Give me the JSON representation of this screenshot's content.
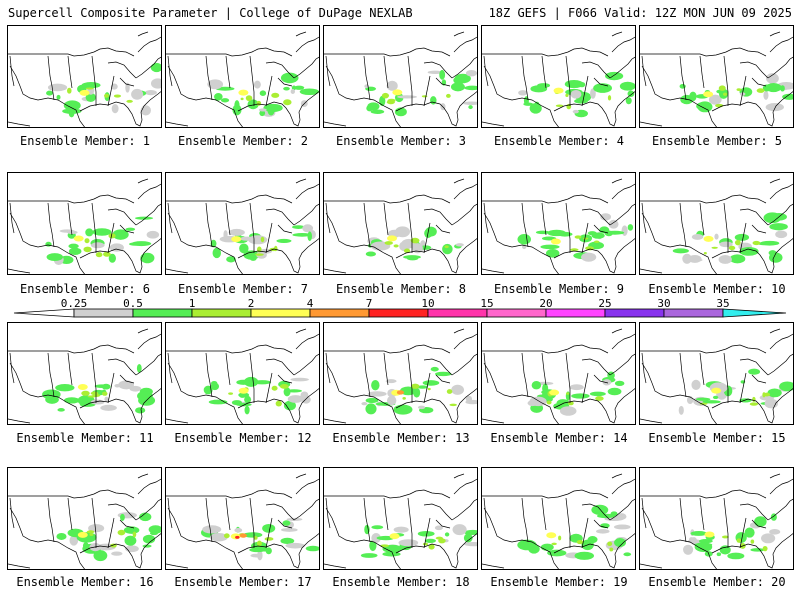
{
  "header": {
    "left": "Supercell Composite Parameter | College of DuPage NEXLAB",
    "right": "18Z GEFS | F066 Valid: 12Z MON JUN 09 2025"
  },
  "colorbar": {
    "ticks": [
      "0.25",
      "0.5",
      "1",
      "2",
      "4",
      "7",
      "10",
      "15",
      "20",
      "25",
      "30",
      "35"
    ],
    "colors": [
      "#d0d0d0",
      "#55ee55",
      "#aaee33",
      "#ffff55",
      "#ff9933",
      "#ff2222",
      "#ff33aa",
      "#ff66cc",
      "#ff44ff",
      "#8833ee",
      "#aa66dd",
      "#33eeee"
    ]
  },
  "members": [
    {
      "label": "Ensemble Member: 1",
      "max": "2"
    },
    {
      "label": "Ensemble Member: 2",
      "max": "2"
    },
    {
      "label": "Ensemble Member: 3",
      "max": "4"
    },
    {
      "label": "Ensemble Member: 4",
      "max": "2"
    },
    {
      "label": "Ensemble Member: 5",
      "max": "2"
    },
    {
      "label": "Ensemble Member: 6",
      "max": "2"
    },
    {
      "label": "Ensemble Member: 7",
      "max": "2"
    },
    {
      "label": "Ensemble Member: 8",
      "max": "2"
    },
    {
      "label": "Ensemble Member: 9",
      "max": "2"
    },
    {
      "label": "Ensemble Member: 10",
      "max": "2"
    },
    {
      "label": "Ensemble Member: 11",
      "max": "2"
    },
    {
      "label": "Ensemble Member: 12",
      "max": "2"
    },
    {
      "label": "Ensemble Member: 13",
      "max": "7"
    },
    {
      "label": "Ensemble Member: 14",
      "max": "2"
    },
    {
      "label": "Ensemble Member: 15",
      "max": "2"
    },
    {
      "label": "Ensemble Member: 16",
      "max": "2"
    },
    {
      "label": "Ensemble Member: 17",
      "max": "10"
    },
    {
      "label": "Ensemble Member: 18",
      "max": "2"
    },
    {
      "label": "Ensemble Member: 19",
      "max": "2"
    },
    {
      "label": "Ensemble Member: 20",
      "max": "2"
    }
  ]
}
